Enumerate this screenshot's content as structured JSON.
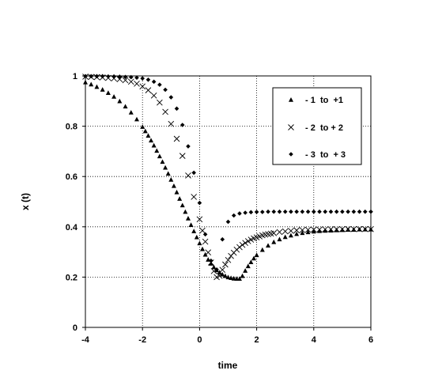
{
  "chart_data": {
    "type": "scatter",
    "title": "",
    "xlabel": "time",
    "ylabel": "x (t)",
    "xlim": [
      -4,
      6
    ],
    "ylim": [
      0,
      1
    ],
    "xticks": [
      -4,
      -2,
      0,
      2,
      4,
      6
    ],
    "yticks": [
      0,
      0.2,
      0.4,
      0.6,
      0.8,
      1
    ],
    "xtick_labels": [
      "-4",
      "-2",
      "0",
      "2",
      "4",
      "6"
    ],
    "ytick_labels": [
      "0",
      "0.2",
      "0.4",
      "0.6",
      "0.8",
      "1"
    ],
    "grid": "dotted",
    "legend_position": "top-right",
    "series": [
      {
        "name": "- 1  to  +1",
        "marker": "triangle",
        "color": "#000000",
        "x": [
          -4.0,
          -3.8,
          -3.6,
          -3.4,
          -3.2,
          -3.0,
          -2.8,
          -2.6,
          -2.4,
          -2.2,
          -2.0,
          -1.9,
          -1.8,
          -1.7,
          -1.6,
          -1.5,
          -1.4,
          -1.3,
          -1.2,
          -1.1,
          -1.0,
          -0.9,
          -0.8,
          -0.7,
          -0.6,
          -0.5,
          -0.4,
          -0.3,
          -0.2,
          -0.1,
          0.0,
          0.1,
          0.2,
          0.3,
          0.4,
          0.5,
          0.6,
          0.7,
          0.8,
          0.9,
          1.0,
          1.1,
          1.2,
          1.3,
          1.4,
          1.5,
          1.6,
          1.7,
          1.8,
          1.9,
          2.0,
          2.2,
          2.4,
          2.6,
          2.8,
          3.0,
          3.2,
          3.4,
          3.6,
          3.8,
          4.0,
          4.2,
          4.4,
          4.6,
          4.8,
          5.0,
          5.2,
          5.4,
          5.6,
          5.8,
          6.0
        ],
        "y": [
          0.975,
          0.967,
          0.957,
          0.946,
          0.933,
          0.918,
          0.9,
          0.879,
          0.855,
          0.828,
          0.798,
          0.781,
          0.763,
          0.744,
          0.724,
          0.703,
          0.681,
          0.659,
          0.636,
          0.612,
          0.588,
          0.563,
          0.538,
          0.512,
          0.486,
          0.46,
          0.434,
          0.408,
          0.383,
          0.359,
          0.335,
          0.312,
          0.29,
          0.27,
          0.254,
          0.24,
          0.228,
          0.219,
          0.211,
          0.205,
          0.2,
          0.197,
          0.195,
          0.194,
          0.194,
          0.205,
          0.226,
          0.244,
          0.26,
          0.275,
          0.288,
          0.309,
          0.326,
          0.34,
          0.351,
          0.36,
          0.366,
          0.372,
          0.376,
          0.379,
          0.382,
          0.384,
          0.385,
          0.386,
          0.387,
          0.388,
          0.389,
          0.389,
          0.39,
          0.39,
          0.39
        ]
      },
      {
        "name": "- 2  to + 2",
        "marker": "x",
        "color": "#000000",
        "x": [
          -4.0,
          -3.8,
          -3.6,
          -3.4,
          -3.2,
          -3.0,
          -2.8,
          -2.6,
          -2.4,
          -2.2,
          -2.0,
          -1.8,
          -1.6,
          -1.4,
          -1.2,
          -1.0,
          -0.8,
          -0.6,
          -0.4,
          -0.2,
          0.0,
          0.1,
          0.2,
          0.3,
          0.4,
          0.5,
          0.6,
          0.7,
          0.8,
          0.9,
          1.0,
          1.1,
          1.2,
          1.3,
          1.4,
          1.5,
          1.6,
          1.7,
          1.8,
          1.9,
          2.0,
          2.1,
          2.2,
          2.3,
          2.4,
          2.5,
          2.6,
          2.8,
          3.0,
          3.2,
          3.4,
          3.6,
          3.8,
          4.0,
          4.2,
          4.4,
          4.6,
          4.8,
          5.0,
          5.2,
          5.4,
          5.6,
          5.8,
          6.0
        ],
        "y": [
          0.997,
          0.996,
          0.995,
          0.994,
          0.992,
          0.99,
          0.987,
          0.983,
          0.977,
          0.969,
          0.958,
          0.943,
          0.922,
          0.894,
          0.857,
          0.809,
          0.75,
          0.682,
          0.604,
          0.519,
          0.43,
          0.385,
          0.341,
          0.298,
          0.258,
          0.224,
          0.2,
          0.205,
          0.229,
          0.25,
          0.268,
          0.284,
          0.297,
          0.309,
          0.319,
          0.328,
          0.336,
          0.343,
          0.349,
          0.354,
          0.358,
          0.362,
          0.366,
          0.369,
          0.371,
          0.373,
          0.375,
          0.379,
          0.382,
          0.384,
          0.386,
          0.387,
          0.388,
          0.389,
          0.389,
          0.39,
          0.39,
          0.39,
          0.391,
          0.391,
          0.391,
          0.391,
          0.391,
          0.391
        ]
      },
      {
        "name": "- 3  to  + 3",
        "marker": "diamond",
        "color": "#000000",
        "x": [
          -4.0,
          -3.8,
          -3.6,
          -3.4,
          -3.2,
          -3.0,
          -2.8,
          -2.6,
          -2.4,
          -2.2,
          -2.0,
          -1.8,
          -1.6,
          -1.4,
          -1.2,
          -1.0,
          -0.8,
          -0.6,
          -0.4,
          -0.2,
          0.0,
          0.2,
          0.4,
          0.6,
          0.8,
          1.0,
          1.2,
          1.4,
          1.6,
          1.8,
          2.0,
          2.2,
          2.4,
          2.6,
          2.8,
          3.0,
          3.2,
          3.4,
          3.6,
          3.8,
          4.0,
          4.2,
          4.4,
          4.6,
          4.8,
          5.0,
          5.2,
          5.4,
          5.6,
          5.8,
          6.0
        ],
        "y": [
          0.999,
          0.999,
          0.999,
          0.999,
          0.998,
          0.998,
          0.997,
          0.996,
          0.995,
          0.993,
          0.99,
          0.985,
          0.977,
          0.965,
          0.945,
          0.915,
          0.87,
          0.805,
          0.72,
          0.615,
          0.495,
          0.37,
          0.265,
          0.23,
          0.35,
          0.42,
          0.445,
          0.453,
          0.456,
          0.458,
          0.459,
          0.459,
          0.46,
          0.46,
          0.46,
          0.46,
          0.46,
          0.46,
          0.46,
          0.46,
          0.46,
          0.46,
          0.46,
          0.46,
          0.46,
          0.46,
          0.46,
          0.46,
          0.46,
          0.46,
          0.46
        ]
      }
    ]
  }
}
